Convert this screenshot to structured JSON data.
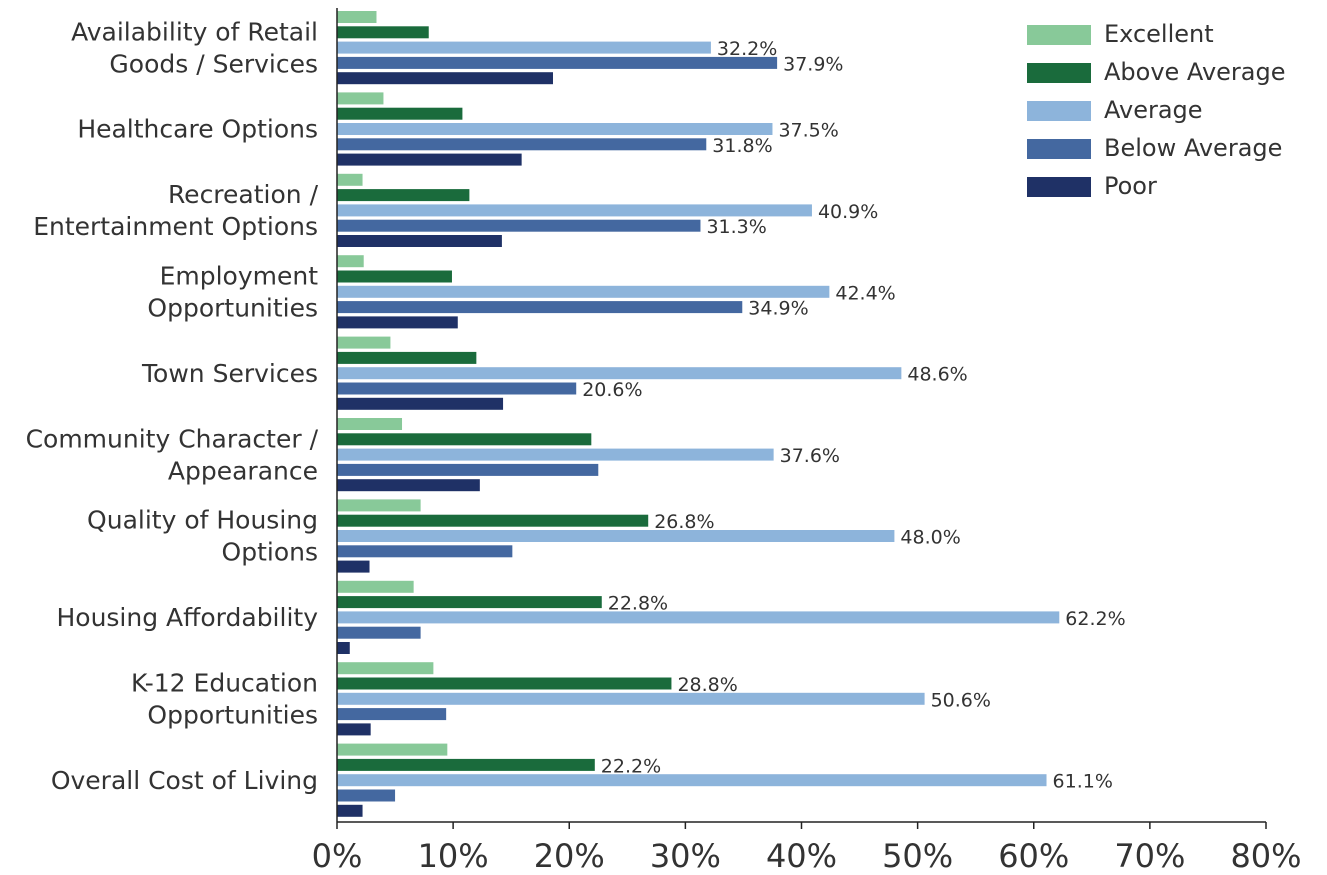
{
  "chart_data": {
    "type": "barh",
    "categories": [
      [
        "Availability of Retail",
        "Goods / Services"
      ],
      [
        "Healthcare Options"
      ],
      [
        "Recreation /",
        "Entertainment Options"
      ],
      [
        "Employment",
        "Opportunities"
      ],
      [
        "Town Services"
      ],
      [
        "Community Character /",
        "Appearance"
      ],
      [
        "Quality of Housing",
        "Options"
      ],
      [
        "Housing Affordability"
      ],
      [
        "K-12 Education",
        "Opportunities"
      ],
      [
        "Overall Cost of Living"
      ]
    ],
    "series": [
      {
        "name": "Excellent",
        "color": "#88c999",
        "values": [
          3.4,
          4.0,
          2.2,
          2.3,
          4.6,
          5.6,
          7.2,
          6.6,
          8.3,
          9.5
        ],
        "value_labels": [
          null,
          null,
          null,
          null,
          null,
          null,
          null,
          null,
          null,
          null
        ]
      },
      {
        "name": "Above Average",
        "color": "#1a6b3c",
        "values": [
          7.9,
          10.8,
          11.4,
          9.9,
          12.0,
          21.9,
          26.8,
          22.8,
          28.8,
          22.2
        ],
        "value_labels": [
          null,
          null,
          null,
          null,
          null,
          null,
          "26.8%",
          "22.8%",
          "28.8%",
          "22.2%"
        ]
      },
      {
        "name": "Average",
        "color": "#8db4db",
        "values": [
          32.2,
          37.5,
          40.9,
          42.4,
          48.6,
          37.6,
          48.0,
          62.2,
          50.6,
          61.1
        ],
        "value_labels": [
          "32.2%",
          "37.5%",
          "40.9%",
          "42.4%",
          "48.6%",
          "37.6%",
          "48.0%",
          "62.2%",
          "50.6%",
          "61.1%"
        ]
      },
      {
        "name": "Below Average",
        "color": "#4468a0",
        "values": [
          37.9,
          31.8,
          31.3,
          34.9,
          20.6,
          22.5,
          15.1,
          7.2,
          9.4,
          5.0
        ],
        "value_labels": [
          "37.9%",
          "31.8%",
          "31.3%",
          "34.9%",
          "20.6%",
          null,
          null,
          null,
          null,
          null
        ]
      },
      {
        "name": "Poor",
        "color": "#1f3166",
        "values": [
          18.6,
          15.9,
          14.2,
          10.4,
          14.3,
          12.3,
          2.8,
          1.1,
          2.9,
          2.2
        ],
        "value_labels": [
          null,
          null,
          null,
          null,
          null,
          null,
          null,
          null,
          null,
          null
        ]
      }
    ],
    "xlim": [
      0,
      80
    ],
    "xticks": [
      {
        "value": 0,
        "label": "0%"
      },
      {
        "value": 10,
        "label": "10%"
      },
      {
        "value": 20,
        "label": "20%"
      },
      {
        "value": 30,
        "label": "30%"
      },
      {
        "value": 40,
        "label": "40%"
      },
      {
        "value": 50,
        "label": "50%"
      },
      {
        "value": 60,
        "label": "60%"
      },
      {
        "value": 70,
        "label": "70%"
      },
      {
        "value": 80,
        "label": "80%"
      }
    ],
    "legend": "top-right"
  }
}
